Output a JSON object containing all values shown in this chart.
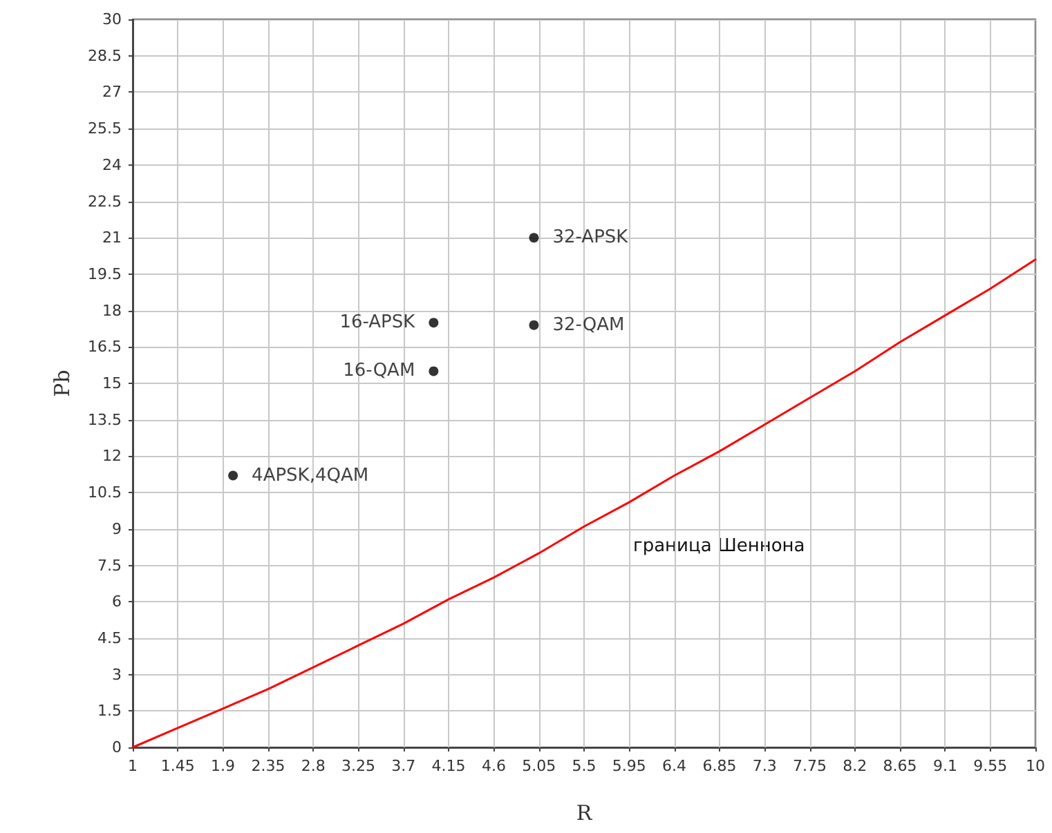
{
  "chart_data": {
    "type": "scatter",
    "xlabel": "R",
    "ylabel": "Pb",
    "xlim": [
      1,
      10
    ],
    "xticks": [
      1,
      1.45,
      1.9,
      2.35,
      2.8,
      3.25,
      3.7,
      4.15,
      4.6,
      5.05,
      5.5,
      5.95,
      6.4,
      6.85,
      7.3,
      7.75,
      8.2,
      8.65,
      9.1,
      9.55,
      10
    ],
    "ylim": [
      0,
      30
    ],
    "yticks": [
      0,
      1.5,
      3,
      4.5,
      6,
      7.5,
      9,
      10.5,
      12,
      13.5,
      15,
      16.5,
      18,
      19.5,
      21,
      22.5,
      24,
      25.5,
      27,
      28.5,
      30
    ],
    "grid": true,
    "marker": "circle",
    "series": [
      {
        "type": "line",
        "color": "#ff0000",
        "marker": "none",
        "line_style": "solid",
        "x": [
          1,
          1.45,
          1.9,
          2.35,
          2.8,
          3.25,
          3.7,
          4.15,
          4.6,
          5.05,
          5.5,
          5.95,
          6.4,
          6.85,
          7.3,
          7.75,
          8.2,
          8.65,
          9.1,
          9.55,
          10
        ],
        "values": [
          0,
          0.8,
          1.6,
          2.4,
          3.3,
          4.2,
          5.1,
          6.1,
          7.0,
          8.0,
          9.1,
          10.1,
          11.2,
          12.2,
          13.3,
          14.4,
          15.5,
          16.7,
          17.8,
          18.9,
          20.1
        ]
      },
      {
        "name": "4APSK,4QAM",
        "color": "#000000",
        "x": [
          2
        ],
        "values": [
          11.2
        ]
      },
      {
        "name": "16-QAM",
        "color": "#000000",
        "x": [
          4
        ],
        "values": [
          15.5
        ]
      },
      {
        "name": "16-APSK",
        "color": "#000000",
        "x": [
          4
        ],
        "values": [
          17.5
        ]
      },
      {
        "name": "32-QAM",
        "color": "#000000",
        "x": [
          5
        ],
        "values": [
          17.4
        ]
      },
      {
        "name": "32-APSK",
        "color": "#000000",
        "x": [
          5
        ],
        "values": [
          21
        ]
      }
    ],
    "annotations": [
      "граница Шеннона"
    ]
  }
}
